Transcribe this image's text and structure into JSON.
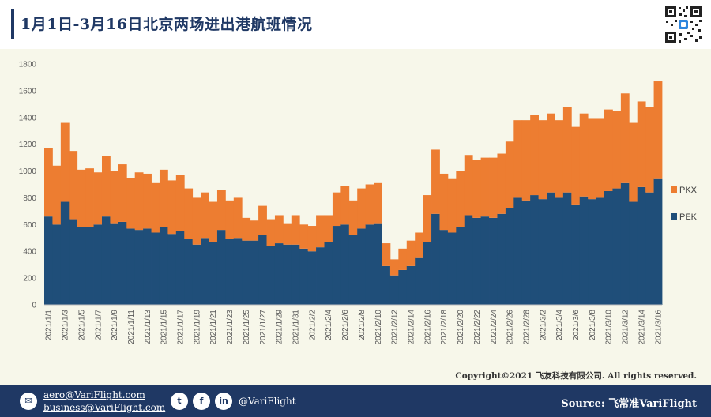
{
  "header": {
    "title": "1月1日-3月16日北京两场进出港航班情况"
  },
  "qr_code": {
    "icon": "qr-code-icon"
  },
  "chart_data": {
    "type": "bar",
    "stacked": true,
    "categories": [
      "2021/1/1",
      "2021/1/2",
      "2021/1/3",
      "2021/1/4",
      "2021/1/5",
      "2021/1/6",
      "2021/1/7",
      "2021/1/8",
      "2021/1/9",
      "2021/1/10",
      "2021/1/11",
      "2021/1/12",
      "2021/1/13",
      "2021/1/14",
      "2021/1/15",
      "2021/1/16",
      "2021/1/17",
      "2021/1/18",
      "2021/1/19",
      "2021/1/20",
      "2021/1/21",
      "2021/1/22",
      "2021/1/23",
      "2021/1/24",
      "2021/1/25",
      "2021/1/26",
      "2021/1/27",
      "2021/1/28",
      "2021/1/29",
      "2021/1/30",
      "2021/1/31",
      "2021/2/1",
      "2021/2/2",
      "2021/2/3",
      "2021/2/4",
      "2021/2/5",
      "2021/2/6",
      "2021/2/7",
      "2021/2/8",
      "2021/2/9",
      "2021/2/10",
      "2021/2/11",
      "2021/2/12",
      "2021/2/13",
      "2021/2/14",
      "2021/2/15",
      "2021/2/16",
      "2021/2/17",
      "2021/2/18",
      "2021/2/19",
      "2021/2/20",
      "2021/2/21",
      "2021/2/22",
      "2021/2/23",
      "2021/2/24",
      "2021/2/25",
      "2021/2/26",
      "2021/2/27",
      "2021/2/28",
      "2021/3/1",
      "2021/3/2",
      "2021/3/3",
      "2021/3/4",
      "2021/3/5",
      "2021/3/6",
      "2021/3/7",
      "2021/3/8",
      "2021/3/9",
      "2021/3/10",
      "2021/3/11",
      "2021/3/12",
      "2021/3/13",
      "2021/3/14",
      "2021/3/15",
      "2021/3/16"
    ],
    "xtick_labels": [
      "2021/1/1",
      "2021/1/3",
      "2021/1/5",
      "2021/1/7",
      "2021/1/9",
      "2021/1/11",
      "2021/1/13",
      "2021/1/15",
      "2021/1/17",
      "2021/1/19",
      "2021/1/21",
      "2021/1/23",
      "2021/1/25",
      "2021/1/27",
      "2021/1/29",
      "2021/1/31",
      "2021/2/2",
      "2021/2/4",
      "2021/2/6",
      "2021/2/8",
      "2021/2/10",
      "2021/2/12",
      "2021/2/14",
      "2021/2/16",
      "2021/2/18",
      "2021/2/20",
      "2021/2/22",
      "2021/2/24",
      "2021/2/26",
      "2021/2/28",
      "2021/3/2",
      "2021/3/4",
      "2021/3/6",
      "2021/3/8",
      "2021/3/10",
      "2021/3/12",
      "2021/3/14",
      "2021/3/16"
    ],
    "series": [
      {
        "name": "PEK",
        "color": "#1f4e79",
        "values": [
          660,
          600,
          770,
          640,
          580,
          580,
          600,
          660,
          610,
          620,
          570,
          560,
          570,
          540,
          580,
          530,
          550,
          490,
          450,
          500,
          470,
          560,
          490,
          500,
          480,
          480,
          520,
          440,
          460,
          450,
          450,
          420,
          400,
          430,
          470,
          590,
          600,
          520,
          570,
          600,
          610,
          290,
          220,
          260,
          290,
          350,
          470,
          680,
          560,
          540,
          580,
          670,
          650,
          660,
          650,
          680,
          720,
          800,
          780,
          820,
          790,
          840,
          800,
          840,
          750,
          810,
          790,
          800,
          850,
          870,
          910,
          770,
          880,
          840,
          940
        ]
      },
      {
        "name": "PKX",
        "color": "#ed7d31",
        "values": [
          510,
          440,
          590,
          510,
          430,
          440,
          390,
          450,
          390,
          430,
          380,
          430,
          410,
          370,
          430,
          400,
          420,
          380,
          350,
          340,
          300,
          300,
          290,
          300,
          170,
          150,
          220,
          200,
          210,
          160,
          220,
          180,
          190,
          240,
          200,
          250,
          290,
          260,
          300,
          300,
          300,
          170,
          120,
          160,
          190,
          190,
          350,
          480,
          420,
          400,
          420,
          450,
          430,
          440,
          450,
          450,
          500,
          580,
          600,
          600,
          590,
          590,
          580,
          640,
          580,
          620,
          600,
          590,
          610,
          580,
          670,
          590,
          640,
          640,
          730
        ]
      }
    ],
    "ylim": [
      0,
      1800
    ],
    "yticks": [
      0,
      200,
      400,
      600,
      800,
      1000,
      1200,
      1400,
      1600,
      1800
    ],
    "grid": false,
    "legend_position": "right"
  },
  "copyright": "Copyright©2021 飞友科技有限公司. All rights reserved.",
  "footer": {
    "mail_icon": "mail-icon",
    "email_1": "aero@VariFlight.com",
    "email_2": "business@VariFlight.com",
    "twitter_icon": "twitter-icon",
    "facebook_icon": "facebook-icon",
    "linkedin_icon": "linkedin-icon",
    "social_handle": "@VariFlight",
    "source": "Source: 飞常准VariFlight"
  }
}
